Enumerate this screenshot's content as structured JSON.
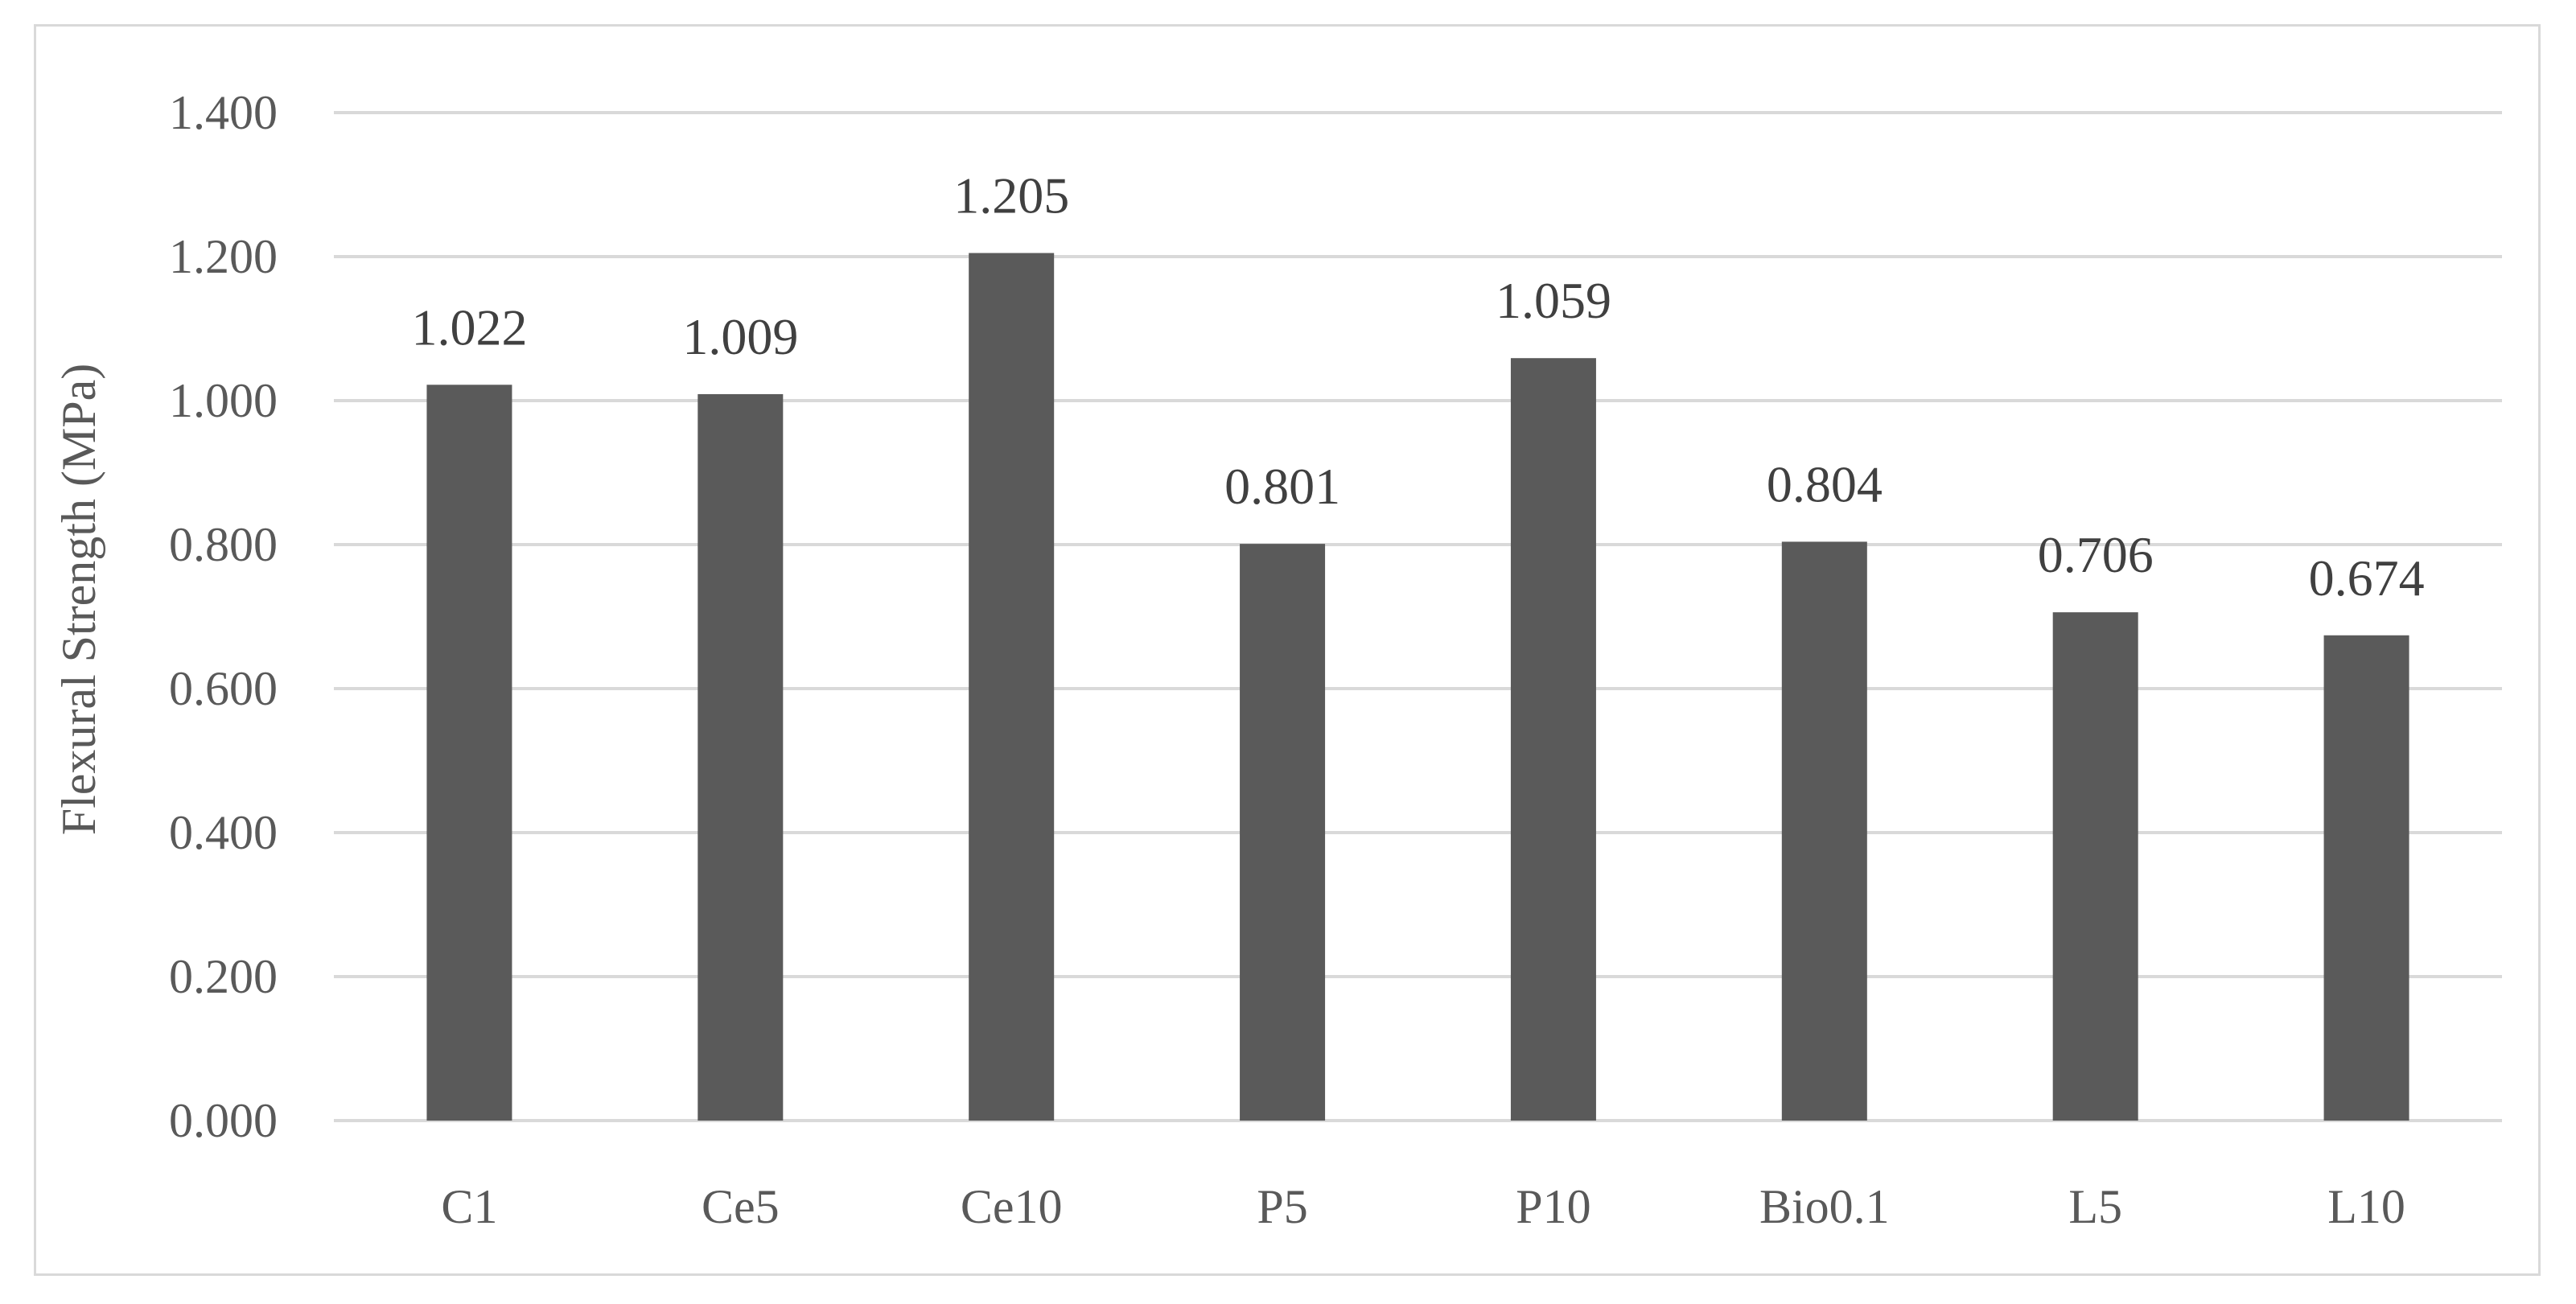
{
  "chart_data": {
    "type": "bar",
    "title": "",
    "xlabel": "",
    "ylabel": "Flexural Strength (MPa)",
    "categories": [
      "C1",
      "Ce5",
      "Ce10",
      "P5",
      "P10",
      "Bio0.1",
      "L5",
      "L10"
    ],
    "values": [
      1.022,
      1.009,
      1.205,
      0.801,
      1.059,
      0.804,
      0.706,
      0.674
    ],
    "value_labels": [
      "1.022",
      "1.009",
      "1.205",
      "0.801",
      "1.059",
      "0.804",
      "0.706",
      "0.674"
    ],
    "ylim": [
      0,
      1.4
    ],
    "yticks": [
      0,
      0.2,
      0.4,
      0.6,
      0.8,
      1.0,
      1.2,
      1.4
    ],
    "ytick_labels": [
      "0.000",
      "0.200",
      "0.400",
      "0.600",
      "0.800",
      "1.000",
      "1.200",
      "1.400"
    ],
    "grid": true,
    "legend": "none",
    "bar_color": "#5a5a5a",
    "grid_color": "#d9d9d9"
  }
}
